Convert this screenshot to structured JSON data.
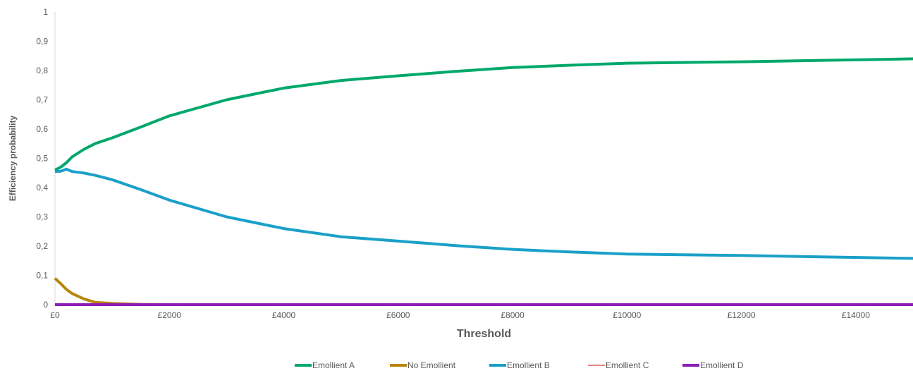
{
  "chart_data": {
    "type": "line",
    "title": "",
    "xlabel": "Threshold",
    "ylabel": "Efficiency probability",
    "xlim": [
      0,
      15000
    ],
    "ylim": [
      0,
      1
    ],
    "x_ticks": [
      0,
      2000,
      4000,
      6000,
      8000,
      10000,
      12000,
      14000
    ],
    "x_tick_labels": [
      "£0",
      "£2000",
      "£4000",
      "£6000",
      "£8000",
      "£10000",
      "£12000",
      "£14000"
    ],
    "y_ticks": [
      0,
      0.1,
      0.2,
      0.3,
      0.4,
      0.5,
      0.6,
      0.7,
      0.8,
      0.9,
      1
    ],
    "y_tick_labels": [
      "0",
      "0,1",
      "0,2",
      "0,3",
      "0,4",
      "0,5",
      "0,6",
      "0,7",
      "0,8",
      "0,9",
      "1"
    ],
    "grid": false,
    "legend_position": "bottom",
    "series": [
      {
        "name": "Emollient A",
        "color": "#00A86B",
        "stroke": "thick",
        "x": [
          0,
          100,
          200,
          300,
          500,
          700,
          1000,
          1500,
          2000,
          3000,
          4000,
          5000,
          6000,
          7000,
          8000,
          9000,
          10000,
          12000,
          15000
        ],
        "y": [
          0.46,
          0.47,
          0.485,
          0.505,
          0.53,
          0.55,
          0.57,
          0.607,
          0.645,
          0.7,
          0.74,
          0.766,
          0.782,
          0.797,
          0.81,
          0.818,
          0.825,
          0.83,
          0.84
        ]
      },
      {
        "name": "No Emollient",
        "color": "#B8860B",
        "stroke": "thick",
        "x": [
          0,
          100,
          200,
          300,
          500,
          700,
          1000,
          1500,
          2000,
          3000,
          5000,
          15000
        ],
        "y": [
          0.09,
          0.072,
          0.052,
          0.038,
          0.02,
          0.008,
          0.004,
          0.001,
          0,
          0,
          0,
          0
        ]
      },
      {
        "name": "Emollient B",
        "color": "#1AA0C8",
        "stroke": "thick",
        "x": [
          0,
          100,
          200,
          300,
          500,
          700,
          1000,
          1500,
          2000,
          3000,
          4000,
          5000,
          6000,
          7000,
          8000,
          9000,
          10000,
          12000,
          15000
        ],
        "y": [
          0.455,
          0.456,
          0.463,
          0.455,
          0.45,
          0.442,
          0.427,
          0.393,
          0.357,
          0.3,
          0.26,
          0.232,
          0.217,
          0.202,
          0.189,
          0.18,
          0.173,
          0.168,
          0.158
        ]
      },
      {
        "name": "Emollient C",
        "color": "#E05A5A",
        "stroke": "thin",
        "x": [
          0,
          15000
        ],
        "y": [
          0,
          0
        ]
      },
      {
        "name": "Emollient D",
        "color": "#8E1DB5",
        "stroke": "thick",
        "x": [
          0,
          15000
        ],
        "y": [
          0,
          0
        ]
      }
    ]
  }
}
